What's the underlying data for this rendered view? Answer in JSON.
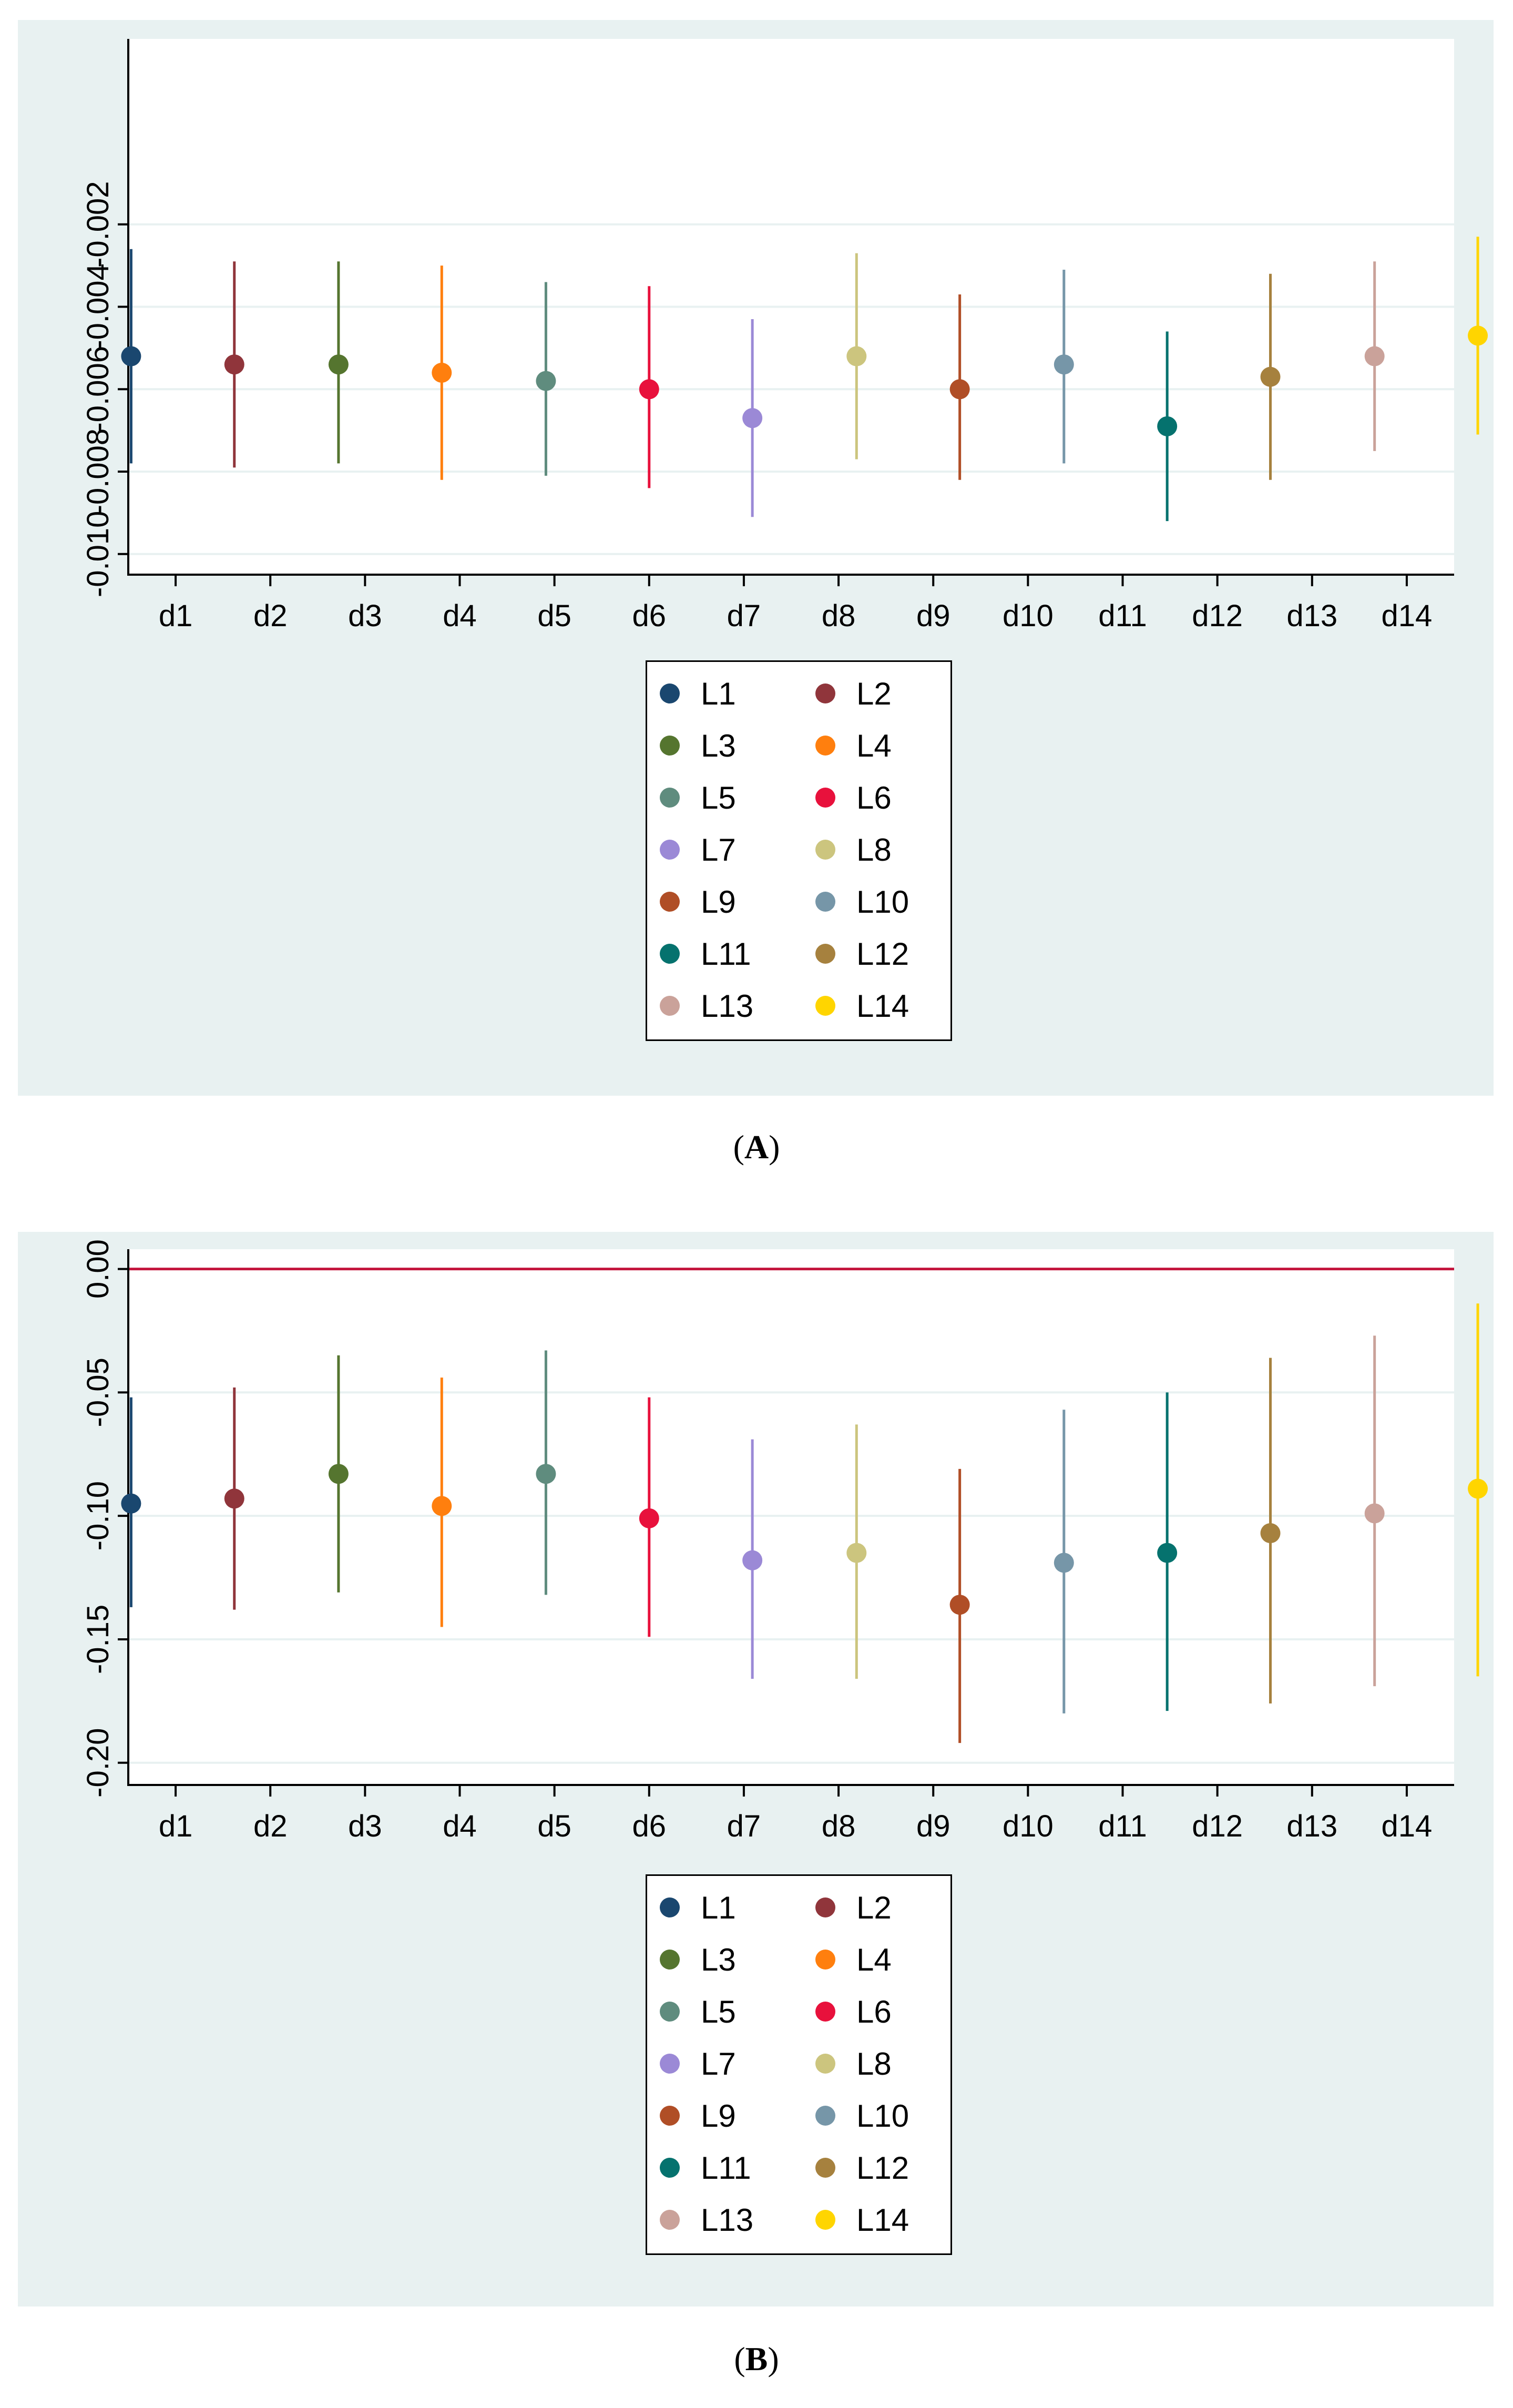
{
  "chart_data": [
    {
      "type": "scatter",
      "subtype": "point-estimate-with-confidence-interval",
      "panel": "A",
      "caption_letter": "A",
      "title": "",
      "xlabel": "",
      "ylabel": "",
      "categories": [
        "d1",
        "d2",
        "d3",
        "d4",
        "d5",
        "d6",
        "d7",
        "d8",
        "d9",
        "d10",
        "d11",
        "d12",
        "d13",
        "d14"
      ],
      "ylim": [
        -0.0105,
        0.0025
      ],
      "yticks": [
        -0.01,
        -0.008,
        -0.006,
        -0.004,
        -0.002
      ],
      "ytick_labels": [
        "-0.010",
        "-0.008",
        "-0.006",
        "-0.004",
        "-0.002"
      ],
      "grid": true,
      "reference_line": null,
      "series": [
        {
          "name": "L1",
          "color": "#1a476f",
          "estimate": -0.0052,
          "ci_low": -0.0078,
          "ci_high": -0.0026
        },
        {
          "name": "L2",
          "color": "#90353b",
          "estimate": -0.0054,
          "ci_low": -0.0079,
          "ci_high": -0.0029
        },
        {
          "name": "L3",
          "color": "#55752f",
          "estimate": -0.0054,
          "ci_low": -0.0078,
          "ci_high": -0.0029
        },
        {
          "name": "L4",
          "color": "#ff7f0e",
          "estimate": -0.0056,
          "ci_low": -0.0082,
          "ci_high": -0.003
        },
        {
          "name": "L5",
          "color": "#5f8c7e",
          "estimate": -0.0058,
          "ci_low": -0.0081,
          "ci_high": -0.0034
        },
        {
          "name": "L6",
          "color": "#e8113c",
          "estimate": -0.006,
          "ci_low": -0.0084,
          "ci_high": -0.0035
        },
        {
          "name": "L7",
          "color": "#9b89d6",
          "estimate": -0.0067,
          "ci_low": -0.0091,
          "ci_high": -0.0043
        },
        {
          "name": "L8",
          "color": "#ccc57e",
          "estimate": -0.0052,
          "ci_low": -0.0077,
          "ci_high": -0.0027
        },
        {
          "name": "L9",
          "color": "#b04e26",
          "estimate": -0.006,
          "ci_low": -0.0082,
          "ci_high": -0.0037
        },
        {
          "name": "L10",
          "color": "#7696a8",
          "estimate": -0.0054,
          "ci_low": -0.0078,
          "ci_high": -0.0031
        },
        {
          "name": "L11",
          "color": "#05726e",
          "estimate": -0.0069,
          "ci_low": -0.0092,
          "ci_high": -0.0046
        },
        {
          "name": "L12",
          "color": "#a6813e",
          "estimate": -0.0057,
          "ci_low": -0.0082,
          "ci_high": -0.0032
        },
        {
          "name": "L13",
          "color": "#caa29a",
          "estimate": -0.0052,
          "ci_low": -0.0075,
          "ci_high": -0.0029
        },
        {
          "name": "L14",
          "color": "#ffd500",
          "estimate": -0.0047,
          "ci_low": -0.0071,
          "ci_high": -0.0023
        }
      ],
      "legend": {
        "position": "bottom-center",
        "columns": 2
      }
    },
    {
      "type": "scatter",
      "subtype": "point-estimate-with-confidence-interval",
      "panel": "B",
      "caption_letter": "B",
      "title": "",
      "xlabel": "",
      "ylabel": "",
      "categories": [
        "d1",
        "d2",
        "d3",
        "d4",
        "d5",
        "d6",
        "d7",
        "d8",
        "d9",
        "d10",
        "d11",
        "d12",
        "d13",
        "d14"
      ],
      "ylim": [
        -0.209,
        0.008
      ],
      "yticks": [
        -0.2,
        -0.15,
        -0.1,
        -0.05,
        0.0
      ],
      "ytick_labels": [
        "-0.20",
        "-0.15",
        "-0.10",
        "-0.05",
        "0.00"
      ],
      "grid": true,
      "reference_line": {
        "y": 0,
        "color": "#c3143c"
      },
      "series": [
        {
          "name": "L1",
          "color": "#1a476f",
          "estimate": -0.095,
          "ci_low": -0.137,
          "ci_high": -0.052
        },
        {
          "name": "L2",
          "color": "#90353b",
          "estimate": -0.093,
          "ci_low": -0.138,
          "ci_high": -0.048
        },
        {
          "name": "L3",
          "color": "#55752f",
          "estimate": -0.083,
          "ci_low": -0.131,
          "ci_high": -0.035
        },
        {
          "name": "L4",
          "color": "#ff7f0e",
          "estimate": -0.096,
          "ci_low": -0.145,
          "ci_high": -0.044
        },
        {
          "name": "L5",
          "color": "#5f8c7e",
          "estimate": -0.083,
          "ci_low": -0.132,
          "ci_high": -0.033
        },
        {
          "name": "L6",
          "color": "#e8113c",
          "estimate": -0.101,
          "ci_low": -0.149,
          "ci_high": -0.052
        },
        {
          "name": "L7",
          "color": "#9b89d6",
          "estimate": -0.118,
          "ci_low": -0.166,
          "ci_high": -0.069
        },
        {
          "name": "L8",
          "color": "#ccc57e",
          "estimate": -0.115,
          "ci_low": -0.166,
          "ci_high": -0.063
        },
        {
          "name": "L9",
          "color": "#b04e26",
          "estimate": -0.136,
          "ci_low": -0.192,
          "ci_high": -0.081
        },
        {
          "name": "L10",
          "color": "#7696a8",
          "estimate": -0.119,
          "ci_low": -0.18,
          "ci_high": -0.057
        },
        {
          "name": "L11",
          "color": "#05726e",
          "estimate": -0.115,
          "ci_low": -0.179,
          "ci_high": -0.05
        },
        {
          "name": "L12",
          "color": "#a6813e",
          "estimate": -0.107,
          "ci_low": -0.176,
          "ci_high": -0.036
        },
        {
          "name": "L13",
          "color": "#caa29a",
          "estimate": -0.099,
          "ci_low": -0.169,
          "ci_high": -0.027
        },
        {
          "name": "L14",
          "color": "#ffd500",
          "estimate": -0.089,
          "ci_low": -0.165,
          "ci_high": -0.014
        }
      ],
      "legend": {
        "position": "bottom-center",
        "columns": 2
      }
    }
  ]
}
